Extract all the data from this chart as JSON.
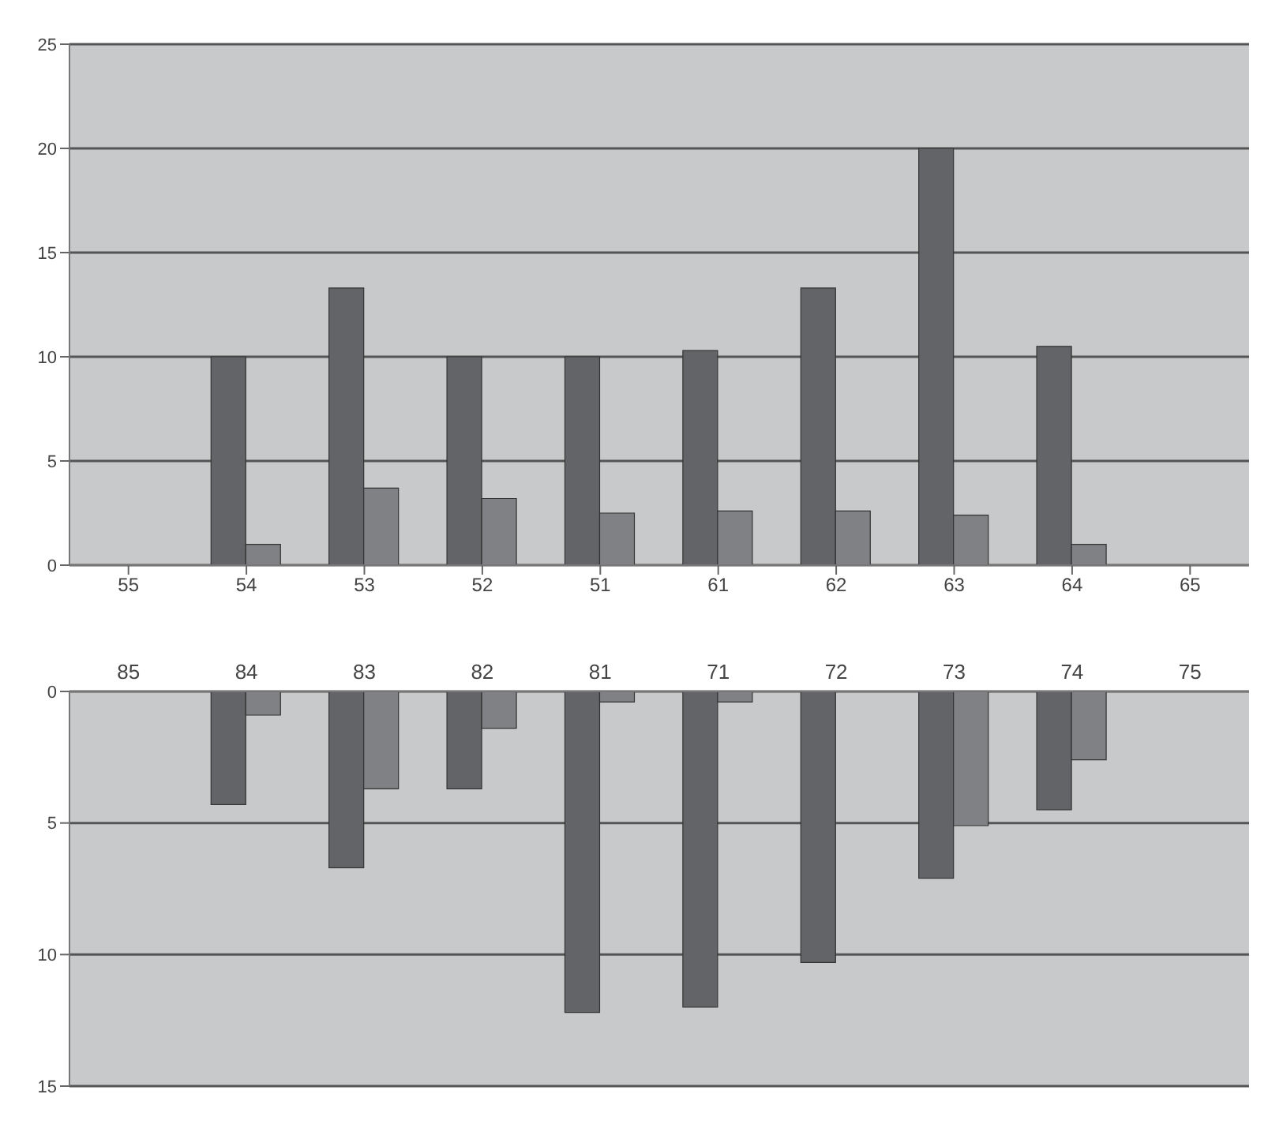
{
  "chart_data": [
    {
      "type": "bar",
      "categories": [
        "55",
        "54",
        "53",
        "52",
        "51",
        "61",
        "62",
        "63",
        "64",
        "65"
      ],
      "series": [
        {
          "color": "#636468",
          "values": [
            null,
            10,
            13.3,
            10,
            10,
            10.3,
            13.3,
            20,
            10.5,
            null
          ]
        },
        {
          "color": "#808185",
          "values": [
            null,
            1.0,
            3.7,
            3.2,
            2.5,
            2.6,
            2.6,
            2.4,
            1.0,
            null
          ]
        }
      ],
      "ylim": [
        0,
        25
      ],
      "yticks": [
        0,
        5,
        10,
        15,
        20,
        25
      ],
      "grid": "y",
      "legend": false
    },
    {
      "type": "bar",
      "categories": [
        "85",
        "84",
        "83",
        "82",
        "81",
        "71",
        "72",
        "73",
        "74",
        "75"
      ],
      "series": [
        {
          "color": "#636468",
          "values": [
            null,
            4.3,
            6.7,
            3.7,
            12.2,
            12.0,
            10.3,
            7.1,
            4.5,
            null
          ]
        },
        {
          "color": "#808185",
          "values": [
            null,
            0.9,
            3.7,
            1.4,
            0.4,
            0.4,
            null,
            5.1,
            2.6,
            null
          ]
        }
      ],
      "ylim": [
        15,
        0
      ],
      "yticks": [
        0,
        5,
        10,
        15
      ],
      "grid": "y",
      "legend": false
    }
  ]
}
